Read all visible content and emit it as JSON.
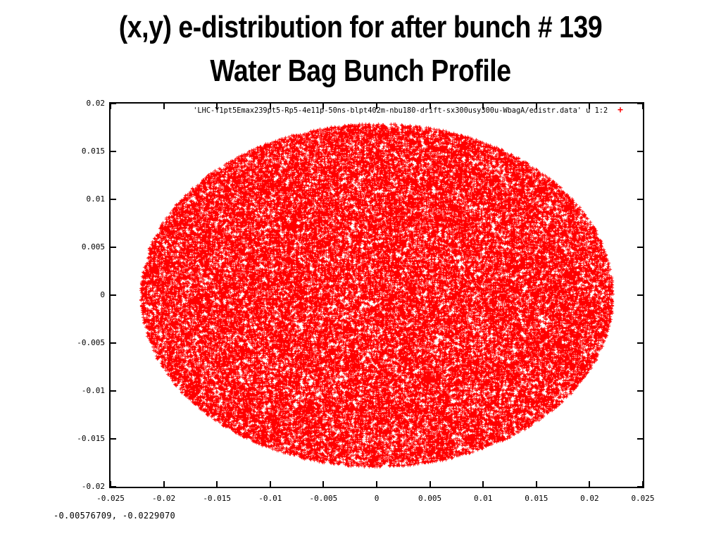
{
  "slide": {
    "title_line1": "(x,y) e-distribution for after bunch # 139",
    "title_line2": "Water Bag Bunch Profile"
  },
  "readout": "-0.00576709, -0.0229070",
  "chart_data": {
    "type": "scatter",
    "title": "(x,y) e-distribution for after bunch # 139 - Water Bag Bunch Profile",
    "xlabel": "",
    "ylabel": "",
    "xlim": [
      -0.025,
      0.025
    ],
    "ylim": [
      -0.02,
      0.02
    ],
    "xticks": [
      "-0.025",
      "-0.02",
      "-0.015",
      "-0.01",
      "-0.005",
      "0",
      "0.005",
      "0.01",
      "0.015",
      "0.02",
      "0.025"
    ],
    "yticks": [
      "0.02",
      "0.015",
      "0.01",
      "0.005",
      "0",
      "-0.005",
      "-0.01",
      "-0.015",
      "-0.02"
    ],
    "grid": false,
    "legend_position": "top-right-inside",
    "legend": {
      "label": "'LHC-Y1pt5Emax239pt5-Rp5-4e11p-50ns-blpt402m-nbu180-drift-sx300usy300u-WbagA/edistr.data' u 1:2",
      "marker": "+",
      "marker_color": "#ff0000"
    },
    "distribution": {
      "shape": "uniform-filled-ellipse",
      "center": [
        0,
        0
      ],
      "semi_axis_x": 0.0222,
      "semi_axis_y": 0.0179,
      "n_points": 45000,
      "marker": "+",
      "marker_size_px": 5,
      "point_color": "#ff0000",
      "seed": 139
    },
    "colors": {
      "points": "#ff0000",
      "axis": "#000000",
      "text": "#000000",
      "background": "#ffffff"
    }
  }
}
